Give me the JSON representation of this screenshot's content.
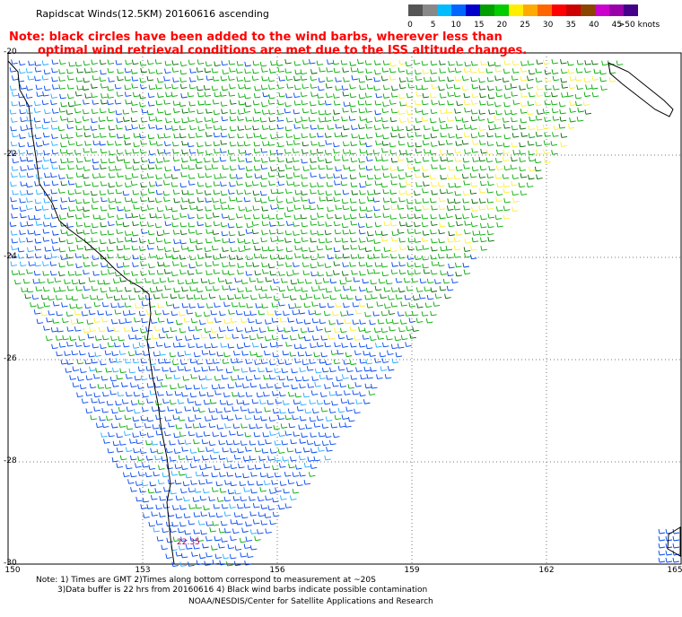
{
  "header": {
    "title": "Rapidscat Winds(12.5KM) 20160616 ascending"
  },
  "note": {
    "line1": "Note: black circles have been added to the wind barbs, wherever less than",
    "line2": "optimal wind retrieval conditions are met due to the ISS altitude changes."
  },
  "legend": {
    "ticks": [
      "0",
      "5",
      "10",
      "15",
      "20",
      "25",
      "30",
      "35",
      "40",
      "45",
      ">50 knots"
    ],
    "colors": [
      "#555555",
      "#888888",
      "#00bbff",
      "#0066ff",
      "#0000cc",
      "#00a000",
      "#00cc00",
      "#ffee00",
      "#ffaa00",
      "#ff6600",
      "#ff0000",
      "#cc0000",
      "#8b4500",
      "#cc00cc",
      "#9900aa",
      "#440088"
    ]
  },
  "map": {
    "lat_labels": [
      "-20",
      "-22",
      "-24",
      "-26",
      "-28",
      "-30"
    ],
    "lon_labels": [
      "150",
      "153",
      "156",
      "159",
      "162",
      "165"
    ],
    "time_label": "22.35",
    "land_color": "#ffffff",
    "coast_color": "#000000",
    "grid_color": "#888888"
  },
  "footer": {
    "line1": "Note: 1) Times are GMT 2)Times along bottom correspond to measurement at ~20S",
    "line2": "3)Data buffer is 22 hrs from 20160616 4) Black wind barbs indicate possible contamination",
    "line3": "NOAA/NESDIS/Center for Satellite Applications and Research"
  }
}
